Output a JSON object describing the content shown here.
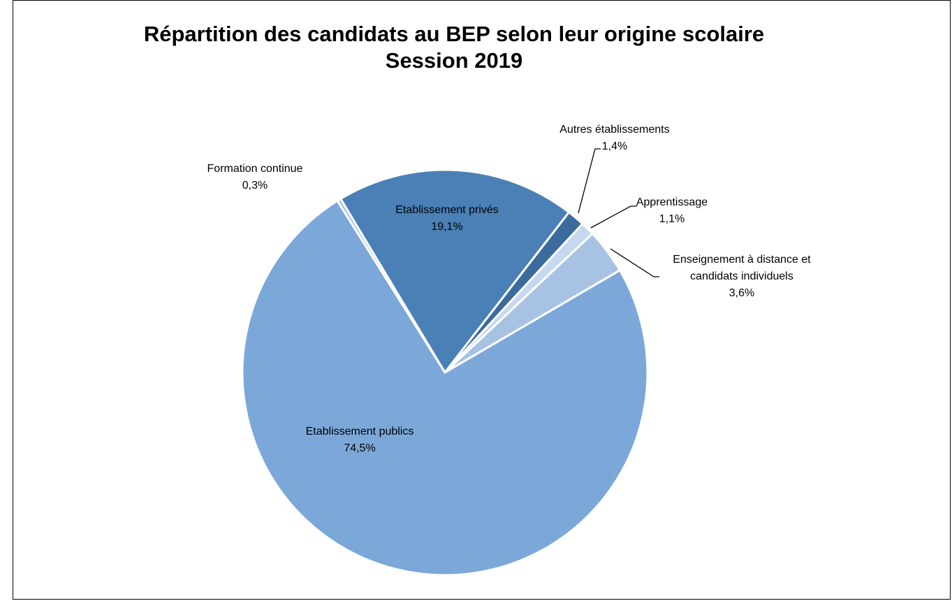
{
  "chart_data": {
    "type": "pie",
    "title": "Répartition des candidats au BEP selon leur origine scolaire Session 2019",
    "categories": [
      "Etablissement privés",
      "Autres établissements",
      "Apprentissage",
      "Enseignement à distance et candidats individuels",
      "Etablissement publics",
      "Formation continue"
    ],
    "values": [
      19.1,
      1.4,
      1.1,
      3.6,
      74.5,
      0.3
    ],
    "value_labels": [
      "19,1%",
      "1,4%",
      "1,1%",
      "3,6%",
      "74,5%",
      "0,3%"
    ],
    "colors": [
      "#4a80b6",
      "#3a6b9c",
      "#c6d8ef",
      "#a8c2e4",
      "#7ba8d9",
      "#a9c3e2"
    ],
    "start_angle": 329
  }
}
